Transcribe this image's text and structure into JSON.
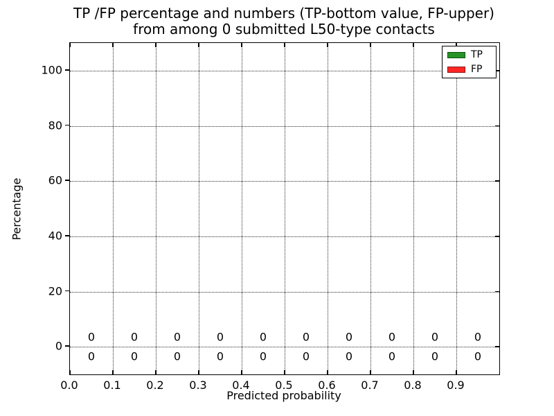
{
  "chart_data": {
    "type": "bar",
    "title_lines": [
      "TP /FP percentage and numbers (TP-bottom value, FP-upper)",
      "from among 0 submitted L50-type contacts"
    ],
    "xlabel": "Predicted probability",
    "ylabel": "Percentage",
    "xlim": [
      0.0,
      1.0
    ],
    "ylim": [
      -10,
      110
    ],
    "grid": "dotted",
    "x_ticks": [
      {
        "value": 0.0,
        "label": "0.0"
      },
      {
        "value": 0.1,
        "label": "0.1"
      },
      {
        "value": 0.2,
        "label": "0.2"
      },
      {
        "value": 0.3,
        "label": "0.3"
      },
      {
        "value": 0.4,
        "label": "0.4"
      },
      {
        "value": 0.5,
        "label": "0.5"
      },
      {
        "value": 0.6,
        "label": "0.6"
      },
      {
        "value": 0.7,
        "label": "0.7"
      },
      {
        "value": 0.8,
        "label": "0.8"
      },
      {
        "value": 0.9,
        "label": "0.9"
      }
    ],
    "y_ticks": [
      {
        "value": 0,
        "label": "0"
      },
      {
        "value": 20,
        "label": "20"
      },
      {
        "value": 40,
        "label": "40"
      },
      {
        "value": 60,
        "label": "60"
      },
      {
        "value": 80,
        "label": "80"
      },
      {
        "value": 100,
        "label": "100"
      }
    ],
    "categories": [
      0.05,
      0.15,
      0.25,
      0.35,
      0.45,
      0.55,
      0.65,
      0.75,
      0.85,
      0.95
    ],
    "series": [
      {
        "name": "TP",
        "color": "#269326",
        "values": [
          0,
          0,
          0,
          0,
          0,
          0,
          0,
          0,
          0,
          0
        ]
      },
      {
        "name": "FP",
        "color": "#ff2626",
        "values": [
          0,
          0,
          0,
          0,
          0,
          0,
          0,
          0,
          0,
          0
        ]
      }
    ],
    "annotations": {
      "fp_row_labels": [
        "0",
        "0",
        "0",
        "0",
        "0",
        "0",
        "0",
        "0",
        "0",
        "0"
      ],
      "tp_row_labels": [
        "0",
        "0",
        "0",
        "0",
        "0",
        "0",
        "0",
        "0",
        "0",
        "0"
      ],
      "fp_row_y": 3.5,
      "tp_row_y": -3.5
    },
    "legend": {
      "position": "upper right",
      "entries": [
        {
          "label": "TP",
          "color": "#269326"
        },
        {
          "label": "FP",
          "color": "#ff2626"
        }
      ]
    }
  }
}
